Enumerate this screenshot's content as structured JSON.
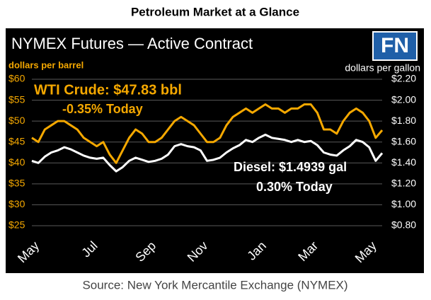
{
  "chart_data": {
    "type": "line",
    "title": "Petroleum Market at a Glance",
    "subtitle": "NYMEX Futures — Active Contract",
    "logo": "FN",
    "y_label": "dollars per barrel",
    "y2_label": "dollars per gallon",
    "source": "Source: New York Mercantile Exchange (NYMEX)",
    "annotations": [
      "WTI Crude: $47.83 bbl",
      "-0.35% Today",
      "Diesel: $1.4939 gal",
      "0.30% Today"
    ],
    "categories": [
      "May",
      null,
      null,
      null,
      null,
      null,
      null,
      null,
      null,
      "Jul",
      null,
      null,
      null,
      null,
      null,
      null,
      null,
      null,
      "Sep",
      null,
      null,
      null,
      null,
      null,
      null,
      null,
      "Nov",
      null,
      null,
      null,
      null,
      null,
      null,
      null,
      null,
      "Jan",
      null,
      null,
      null,
      null,
      null,
      null,
      null,
      "Mar",
      null,
      null,
      null,
      null,
      null,
      null,
      null,
      null,
      "May",
      null,
      null
    ],
    "series": [
      {
        "color": "#f5a800",
        "values": [
          46,
          45,
          48,
          49,
          50,
          50,
          49,
          48,
          46,
          45,
          44,
          45,
          42,
          40,
          43,
          46,
          48,
          47,
          45,
          45,
          46,
          48,
          50,
          51,
          50,
          49,
          47,
          45,
          45,
          46,
          49,
          51,
          52,
          53,
          52,
          53,
          54,
          53,
          53,
          52,
          53,
          53,
          54,
          54,
          52,
          48,
          48,
          47,
          50,
          52,
          53,
          52,
          50,
          46,
          47.83
        ]
      },
      {
        "color": "#ffffff",
        "axis": "y2",
        "values": [
          1.42,
          1.4,
          1.46,
          1.5,
          1.52,
          1.55,
          1.53,
          1.5,
          1.47,
          1.45,
          1.44,
          1.45,
          1.38,
          1.32,
          1.36,
          1.42,
          1.45,
          1.43,
          1.41,
          1.42,
          1.44,
          1.48,
          1.56,
          1.58,
          1.56,
          1.55,
          1.52,
          1.42,
          1.43,
          1.45,
          1.5,
          1.54,
          1.57,
          1.62,
          1.6,
          1.64,
          1.67,
          1.64,
          1.63,
          1.62,
          1.6,
          1.62,
          1.6,
          1.61,
          1.57,
          1.5,
          1.48,
          1.47,
          1.52,
          1.56,
          1.62,
          1.6,
          1.55,
          1.42,
          1.4939
        ]
      }
    ],
    "ylim": [
      25,
      60
    ],
    "yticks": [
      {
        "value": 25,
        "label": "$25"
      },
      {
        "value": 30,
        "label": "$30"
      },
      {
        "value": 35,
        "label": "$35"
      },
      {
        "value": 40,
        "label": "$40"
      },
      {
        "value": 45,
        "label": "$45"
      },
      {
        "value": 50,
        "label": "$50"
      },
      {
        "value": 55,
        "label": "$55"
      },
      {
        "value": 60,
        "label": "$60"
      }
    ],
    "y2lim": [
      0.8,
      2.2
    ],
    "y2ticks": [
      {
        "value": 0.8,
        "label": "$0.80"
      },
      {
        "value": 1.0,
        "label": "$1.00"
      },
      {
        "value": 1.2,
        "label": "$1.20"
      },
      {
        "value": 1.4,
        "label": "$1.40"
      },
      {
        "value": 1.6,
        "label": "$1.60"
      },
      {
        "value": 1.8,
        "label": "$1.80"
      },
      {
        "value": 2.0,
        "label": "$2.00"
      },
      {
        "value": 2.2,
        "label": "$2.20"
      }
    ],
    "grid": true
  }
}
